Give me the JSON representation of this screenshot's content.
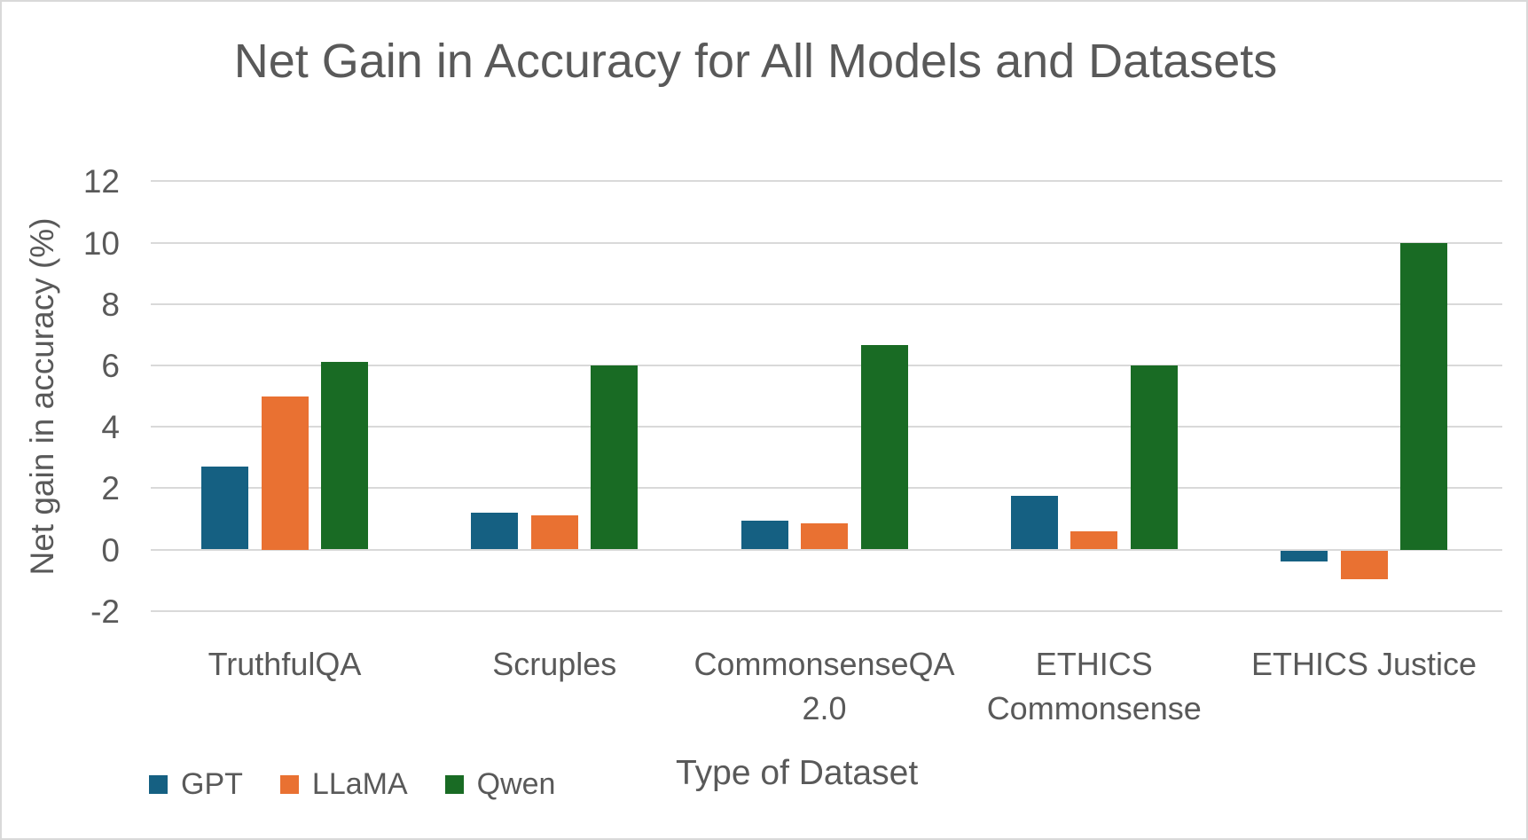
{
  "chart_data": {
    "type": "bar",
    "title": "Net Gain in Accuracy for All Models and Datasets",
    "xlabel": "Type of Dataset",
    "ylabel": "Net gain in accuracy (%)",
    "categories": [
      "TruthfulQA",
      "Scruples",
      "CommonsenseQA\n2.0",
      "ETHICS\nCommonsense",
      "ETHICS Justice"
    ],
    "series": [
      {
        "name": "GPT",
        "color": "#156082",
        "values": [
          2.7,
          1.2,
          0.95,
          1.75,
          -0.35
        ]
      },
      {
        "name": "LLaMA",
        "color": "#E97132",
        "values": [
          5.0,
          1.1,
          0.85,
          0.6,
          -0.95
        ]
      },
      {
        "name": "Qwen",
        "color": "#196B24",
        "values": [
          6.1,
          6.0,
          6.65,
          6.0,
          10.0
        ]
      }
    ],
    "yticks": [
      12,
      10,
      8,
      6,
      4,
      2,
      0,
      -2
    ],
    "ylim": [
      -2,
      12
    ],
    "grid": true,
    "legend_position": "bottom-left",
    "gridline_color": "#D9D9D9",
    "text_color": "#595959",
    "background_color": "#FFFFFF"
  }
}
